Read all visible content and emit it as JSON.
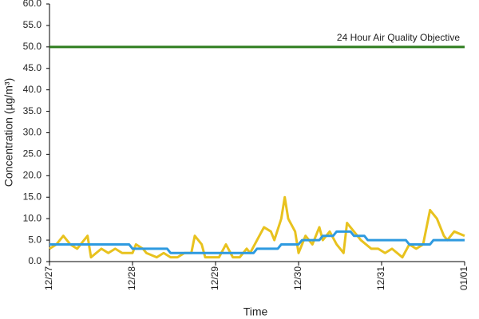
{
  "chart_data": {
    "type": "line",
    "x_label": "Time",
    "y_label": "Concentration (µg/m³)",
    "annotation": "24 Hour Air Quality Objective",
    "xlim": [
      0,
      120
    ],
    "xticks": [
      {
        "value": 0,
        "label": "12/27"
      },
      {
        "value": 24,
        "label": "12/28"
      },
      {
        "value": 48,
        "label": "12/29"
      },
      {
        "value": 72,
        "label": "12/30"
      },
      {
        "value": 96,
        "label": "12/31"
      },
      {
        "value": 120,
        "label": "01/01"
      }
    ],
    "ylim": [
      0,
      60
    ],
    "yticks": [
      {
        "value": 0,
        "label": "0.0"
      },
      {
        "value": 5,
        "label": "5.0"
      },
      {
        "value": 10,
        "label": "10.0"
      },
      {
        "value": 15,
        "label": "15.0"
      },
      {
        "value": 20,
        "label": "20.0"
      },
      {
        "value": 25,
        "label": "25.0"
      },
      {
        "value": 30,
        "label": "30.0"
      },
      {
        "value": 35,
        "label": "35.0"
      },
      {
        "value": 40,
        "label": "40.0"
      },
      {
        "value": 45,
        "label": "45.0"
      },
      {
        "value": 50,
        "label": "50.0"
      },
      {
        "value": 55,
        "label": "55.0"
      },
      {
        "value": 60,
        "label": "60.0"
      }
    ],
    "series": [
      {
        "color": "#e8c21e",
        "x": [
          0,
          2,
          4,
          6,
          8,
          9,
          11,
          12,
          15,
          17,
          19,
          21,
          24,
          25,
          27,
          28,
          31,
          33,
          35,
          37,
          39,
          41,
          42,
          44,
          45,
          47,
          49,
          51,
          53,
          55,
          57,
          58,
          60,
          62,
          64,
          65,
          67,
          68,
          69,
          71,
          72,
          74,
          76,
          78,
          79,
          81,
          83,
          85,
          86,
          88,
          90,
          93,
          95,
          97,
          99,
          102,
          104,
          106,
          108,
          110,
          112,
          114,
          115,
          117,
          120
        ],
        "values": [
          3,
          4,
          6,
          4,
          3,
          4,
          6,
          1,
          3,
          2,
          3,
          2,
          2,
          4,
          3,
          2,
          1,
          2,
          1,
          1,
          2,
          2,
          6,
          4,
          1,
          1,
          1,
          4,
          1,
          1,
          3,
          2,
          5,
          8,
          7,
          5,
          10,
          15,
          10,
          7,
          2,
          6,
          4,
          8,
          5,
          7,
          4,
          2,
          9,
          7,
          5,
          3,
          3,
          2,
          3,
          1,
          4,
          3,
          4,
          12,
          10,
          6,
          5,
          7,
          6
        ]
      },
      {
        "color": "#2e9ae0",
        "x": [
          0,
          23,
          24,
          34,
          35,
          59,
          60,
          66,
          67,
          72,
          73,
          78,
          79,
          82,
          83,
          87,
          88,
          91,
          92,
          103,
          104,
          110,
          111,
          120
        ],
        "values": [
          4,
          4,
          3,
          3,
          2,
          2,
          3,
          3,
          4,
          4,
          5,
          5,
          6,
          6,
          7,
          7,
          6,
          6,
          5,
          5,
          4,
          4,
          5,
          5
        ]
      },
      {
        "color": "#2e7d1e",
        "x": [
          0,
          120
        ],
        "values": [
          50,
          50
        ]
      }
    ]
  }
}
